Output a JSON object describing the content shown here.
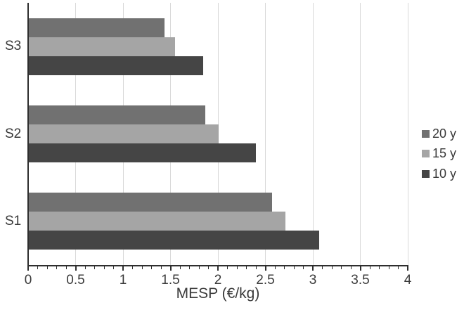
{
  "chart_data": {
    "type": "bar",
    "orientation": "horizontal",
    "title": "",
    "xlabel": "MESP (€/kg)",
    "ylabel": "",
    "categories": [
      "S3",
      "S2",
      "S1"
    ],
    "series": [
      {
        "name": "20 y",
        "color": "#717171",
        "values": [
          1.43,
          1.86,
          2.56
        ]
      },
      {
        "name": "15 y",
        "color": "#a5a5a5",
        "values": [
          1.54,
          2.0,
          2.7
        ]
      },
      {
        "name": "10 y",
        "color": "#454545",
        "values": [
          1.84,
          2.39,
          3.06
        ]
      }
    ],
    "xlim": [
      0,
      4
    ],
    "x_major_tick_step": 0.5,
    "x_minor_tick_step": 0.1,
    "x_tick_labels": [
      "0",
      "0.5",
      "1",
      "1.5",
      "2",
      "2.5",
      "3",
      "3.5",
      "4"
    ],
    "grid": "vertical-major",
    "legend_position": "right",
    "colors": {
      "gridline": "#d9d9d9",
      "axis": "#2e2e2e",
      "text": "#3a3a3a",
      "background": "#ffffff"
    }
  }
}
